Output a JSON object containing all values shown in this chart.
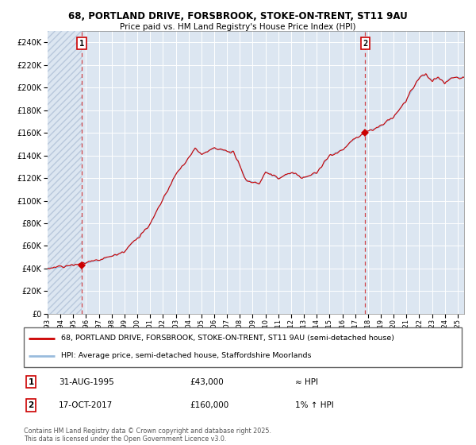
{
  "title_line1": "68, PORTLAND DRIVE, FORSBROOK, STOKE-ON-TRENT, ST11 9AU",
  "title_line2": "Price paid vs. HM Land Registry's House Price Index (HPI)",
  "plot_bg_color": "#dce6f1",
  "hatch_color": "#b8c8dc",
  "grid_color": "#ffffff",
  "sale1_year": 1995.66,
  "sale1_price": 43000,
  "sale1_label": "1",
  "sale2_year": 2017.79,
  "sale2_price": 160000,
  "sale2_label": "2",
  "ylim_min": 0,
  "ylim_max": 250000,
  "xlim_min": 1993,
  "xlim_max": 2025.5,
  "legend_line1": "68, PORTLAND DRIVE, FORSBROOK, STOKE-ON-TRENT, ST11 9AU (semi-detached house)",
  "legend_line2": "HPI: Average price, semi-detached house, Staffordshire Moorlands",
  "note1_label": "1",
  "note1_date": "31-AUG-1995",
  "note1_price": "£43,000",
  "note1_hpi": "≈ HPI",
  "note2_label": "2",
  "note2_date": "17-OCT-2017",
  "note2_price": "£160,000",
  "note2_hpi": "1% ↑ HPI",
  "copyright": "Contains HM Land Registry data © Crown copyright and database right 2025.\nThis data is licensed under the Open Government Licence v3.0.",
  "line_color_property": "#cc0000",
  "line_color_hpi": "#99bbdd",
  "marker_color": "#cc0000"
}
